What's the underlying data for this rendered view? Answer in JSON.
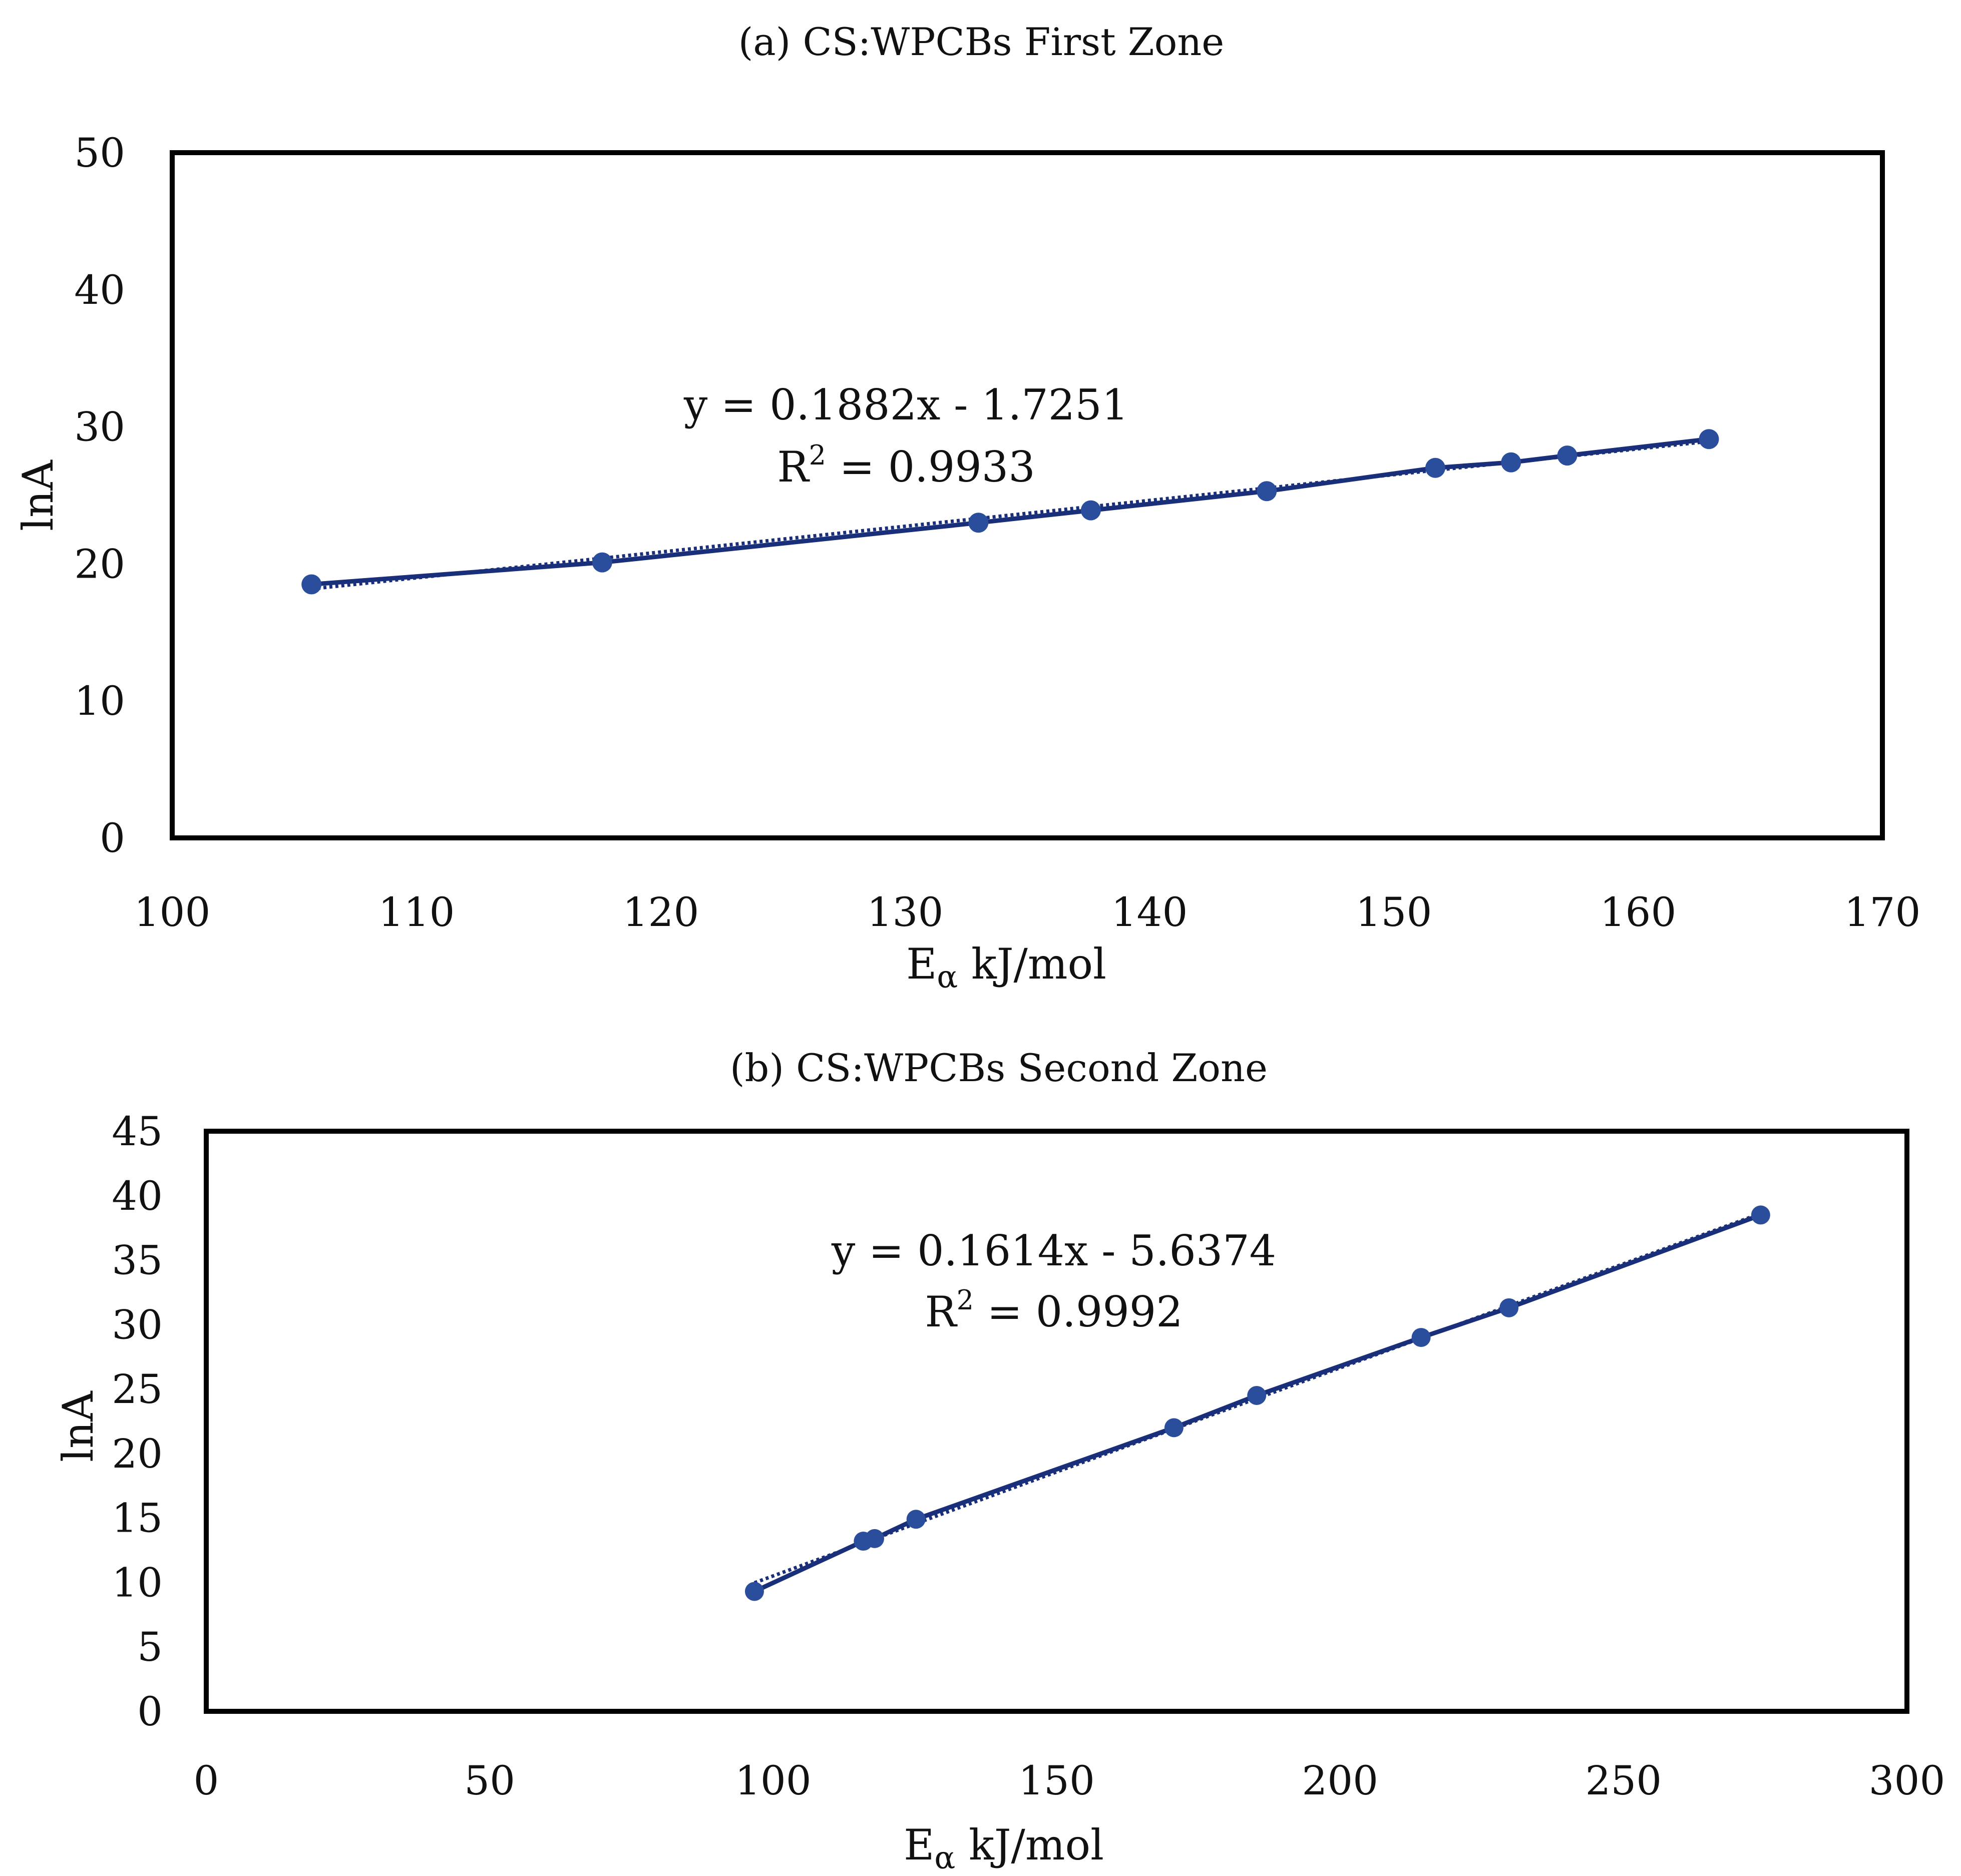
{
  "chart_data": [
    {
      "id": "a",
      "type": "scatter",
      "title": "(a) CS:WPCBs First Zone",
      "xlabel": "kJ/mol",
      "xlabel_symbol": "E",
      "xlabel_subscript": "α",
      "ylabel": "lnA",
      "xlim": [
        100,
        170
      ],
      "ylim": [
        0,
        50
      ],
      "xticks": [
        100,
        110,
        120,
        130,
        140,
        150,
        160,
        170
      ],
      "yticks": [
        0,
        10,
        20,
        30,
        40,
        50
      ],
      "grid": false,
      "series": [
        {
          "name": "CS:WPCBs First Zone",
          "color": "#2b4e9c",
          "points": [
            [
              105.7,
              18.5
            ],
            [
              117.6,
              20.1
            ],
            [
              133.0,
              23.0
            ],
            [
              137.6,
              23.9
            ],
            [
              144.8,
              25.3
            ],
            [
              151.7,
              27.0
            ],
            [
              154.8,
              27.4
            ],
            [
              157.1,
              27.9
            ],
            [
              162.9,
              29.1
            ]
          ]
        }
      ],
      "trendline": {
        "slope": 0.1882,
        "intercept": -1.7251,
        "color": "#1a2f7a"
      },
      "equation": "y = 0.1882x - 1.7251",
      "r2_label": "R",
      "r2_sup": "2",
      "r2_value": "= 0.9933"
    },
    {
      "id": "b",
      "type": "scatter",
      "title": "(b) CS:WPCBs Second Zone",
      "xlabel": "kJ/mol",
      "xlabel_symbol": "E",
      "xlabel_subscript": "α",
      "ylabel": "lnA",
      "xlim": [
        0,
        300
      ],
      "ylim": [
        0,
        45
      ],
      "xticks": [
        0,
        50,
        100,
        150,
        200,
        250,
        300
      ],
      "yticks": [
        0,
        5,
        10,
        15,
        20,
        25,
        30,
        35,
        40,
        45
      ],
      "grid": false,
      "series": [
        {
          "name": "CS:WPCBs Second Zone",
          "color": "#2b4e9c",
          "points": [
            [
              96.7,
              9.3
            ],
            [
              115.9,
              13.2
            ],
            [
              117.9,
              13.4
            ],
            [
              125.2,
              14.9
            ],
            [
              170.7,
              22.0
            ],
            [
              185.3,
              24.5
            ],
            [
              214.3,
              29.0
            ],
            [
              229.8,
              31.3
            ],
            [
              274.2,
              38.5
            ]
          ]
        }
      ],
      "trendline": {
        "slope": 0.1614,
        "intercept": -5.6374,
        "color": "#1a2f7a"
      },
      "equation": "y = 0.1614x - 5.6374",
      "r2_label": "R",
      "r2_sup": "2",
      "r2_value": "= 0.9992"
    }
  ]
}
